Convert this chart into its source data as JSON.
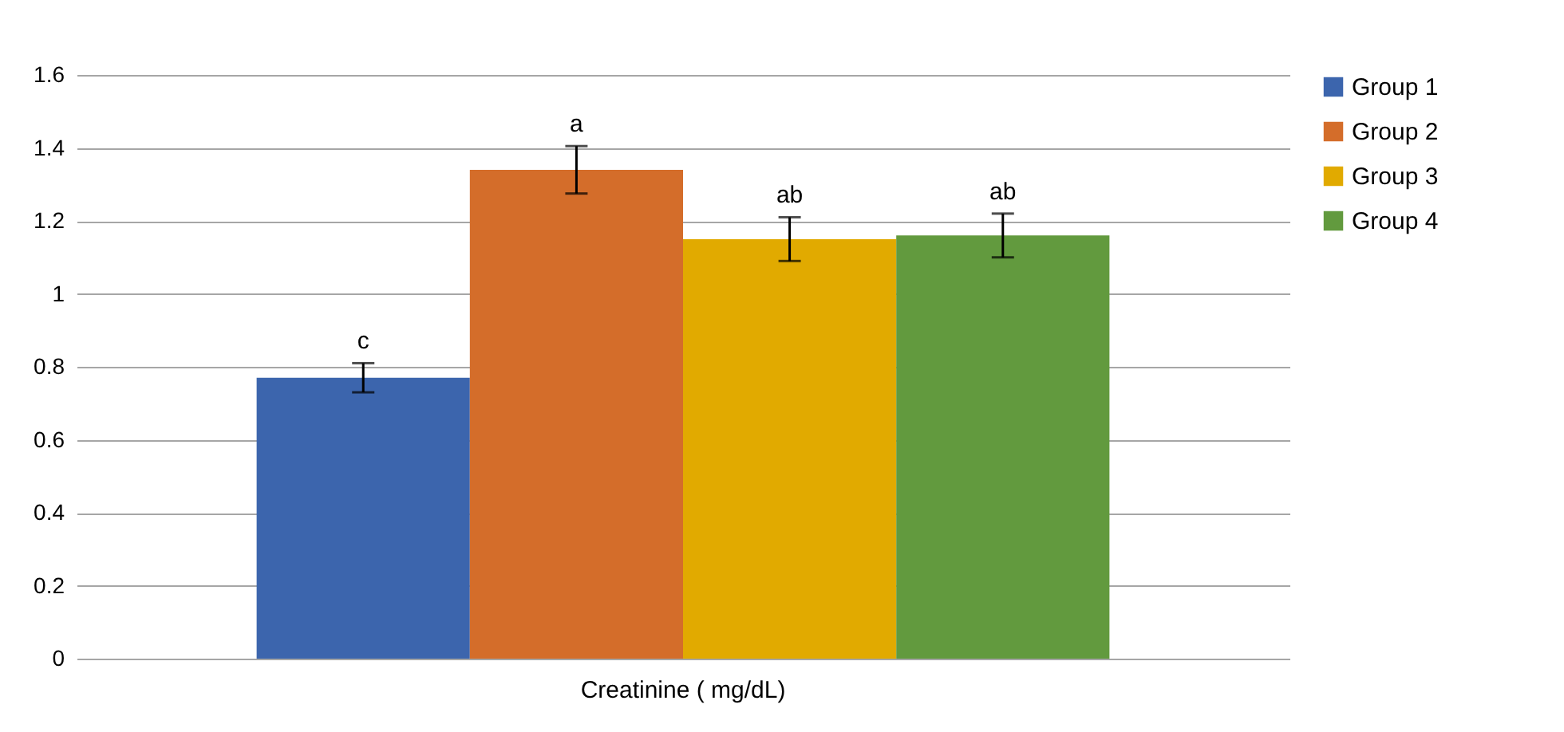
{
  "chart_data": {
    "type": "bar",
    "categories": [
      "Creatinine ( mg/dL)"
    ],
    "series": [
      {
        "name": "Group 1",
        "color": "#3c65ad",
        "values": [
          0.77
        ],
        "errors": [
          0.04
        ]
      },
      {
        "name": "Group 2",
        "color": "#d46d2a",
        "values": [
          1.34
        ],
        "errors": [
          0.065
        ]
      },
      {
        "name": "Group 3",
        "color": "#e1aa00",
        "values": [
          1.15
        ],
        "errors": [
          0.06
        ]
      },
      {
        "name": "Group 4",
        "color": "#629a3e",
        "values": [
          1.16
        ],
        "errors": [
          0.06
        ]
      }
    ],
    "annotations": [
      "c",
      "a",
      "ab",
      "ab"
    ],
    "ylim": [
      0,
      1.6
    ],
    "yticks": [
      0,
      0.2,
      0.4,
      0.6,
      0.8,
      1,
      1.2,
      1.4,
      1.6
    ],
    "grid": "y",
    "legend": "right"
  }
}
